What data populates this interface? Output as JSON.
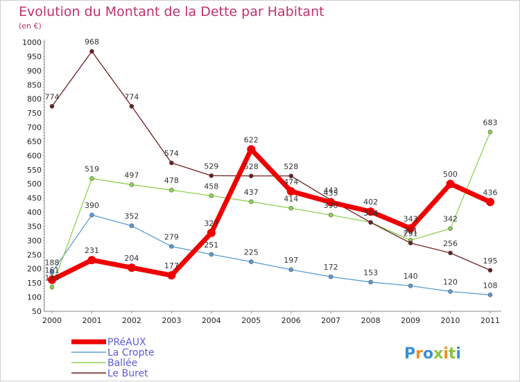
{
  "chart_data": {
    "type": "line",
    "title": "Evolution du Montant de la Dette par Habitant",
    "subtitle": "(en €)",
    "categories": [
      "2000",
      "2001",
      "2002",
      "2003",
      "2004",
      "2005",
      "2006",
      "2007",
      "2008",
      "2009",
      "2010",
      "2011"
    ],
    "ylim": [
      50,
      1000
    ],
    "yticks": [
      50,
      100,
      150,
      200,
      250,
      300,
      350,
      400,
      450,
      500,
      550,
      600,
      650,
      700,
      750,
      800,
      850,
      900,
      950,
      1000
    ],
    "grid": false,
    "legend_position": "bottom-left",
    "series": [
      {
        "name": "PRéAUX",
        "color": "#ee0000",
        "values": [
          161,
          231,
          204,
          177,
          327,
          622,
          474,
          435,
          402,
          343,
          500,
          436
        ],
        "labels": [
          "161",
          "231",
          "204",
          "177",
          "327",
          "622",
          "474",
          "435",
          "402",
          "343",
          "500",
          "436"
        ]
      },
      {
        "name": "La Cropte",
        "color": "#5b9bd5",
        "values": [
          188,
          390,
          352,
          279,
          251,
          225,
          197,
          172,
          153,
          140,
          120,
          108
        ],
        "labels": [
          "188",
          "390",
          "352",
          "279",
          "251",
          "225",
          "197",
          "172",
          "153",
          "140",
          "120",
          "108"
        ]
      },
      {
        "name": "Ballée",
        "color": "#8fd14f",
        "values": [
          135,
          519,
          497,
          478,
          458,
          437,
          414,
          390,
          364,
          301,
          342,
          683
        ],
        "labels": [
          "135",
          "519",
          "497",
          "478",
          "458",
          "437",
          "414",
          "390",
          "364",
          "301",
          "342",
          "683"
        ]
      },
      {
        "name": "Le Buret",
        "color": "#6b1f1f",
        "values": [
          774,
          968,
          774,
          574,
          529,
          528,
          528,
          443,
          364,
          291,
          256,
          195
        ],
        "labels": [
          "774",
          "968",
          "774",
          "574",
          "529",
          "528",
          "528",
          "443",
          "364",
          "291",
          "256",
          "195"
        ]
      }
    ]
  },
  "branding": {
    "logo_text": "Proxiti"
  }
}
